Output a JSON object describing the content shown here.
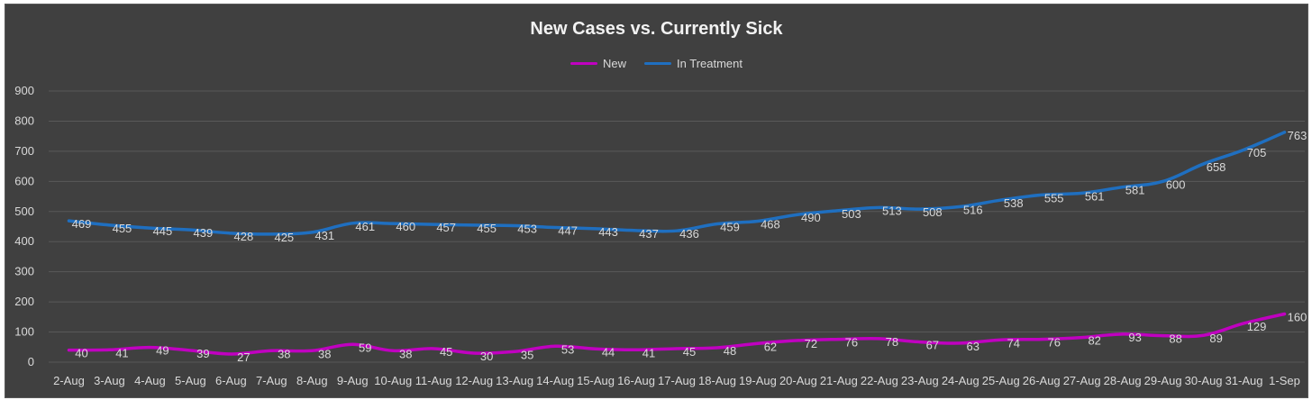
{
  "chart_data": {
    "type": "line",
    "title": "New Cases vs. Currently Sick",
    "xlabel": "",
    "ylabel": "",
    "ylim": [
      0,
      900
    ],
    "yticks": [
      "0",
      "100",
      "200",
      "300",
      "400",
      "500",
      "600",
      "700",
      "800",
      "900"
    ],
    "grid": true,
    "legend_position": "top-center",
    "categories": [
      "2-Aug",
      "3-Aug",
      "4-Aug",
      "5-Aug",
      "6-Aug",
      "7-Aug",
      "8-Aug",
      "9-Aug",
      "10-Aug",
      "11-Aug",
      "12-Aug",
      "13-Aug",
      "14-Aug",
      "15-Aug",
      "16-Aug",
      "17-Aug",
      "18-Aug",
      "19-Aug",
      "20-Aug",
      "21-Aug",
      "22-Aug",
      "23-Aug",
      "24-Aug",
      "25-Aug",
      "26-Aug",
      "27-Aug",
      "28-Aug",
      "29-Aug",
      "30-Aug",
      "31-Aug",
      "1-Sep"
    ],
    "series": [
      {
        "name": "New",
        "color": "#c000c0",
        "values": [
          40,
          41,
          49,
          39,
          27,
          38,
          38,
          59,
          38,
          45,
          30,
          35,
          53,
          44,
          41,
          45,
          48,
          62,
          72,
          76,
          78,
          67,
          63,
          74,
          76,
          82,
          93,
          88,
          89,
          129,
          160
        ]
      },
      {
        "name": "In Treatment",
        "color": "#1f6fc0",
        "values": [
          469,
          455,
          445,
          439,
          428,
          425,
          431,
          461,
          460,
          457,
          455,
          453,
          447,
          443,
          437,
          436,
          459,
          468,
          490,
          503,
          513,
          508,
          516,
          538,
          555,
          561,
          581,
          600,
          658,
          705,
          763
        ]
      }
    ]
  },
  "colors": {
    "background": "#404040",
    "gridline": "#595959",
    "axis_text": "#d9d9d9",
    "data_label": "#d9d9d9"
  }
}
